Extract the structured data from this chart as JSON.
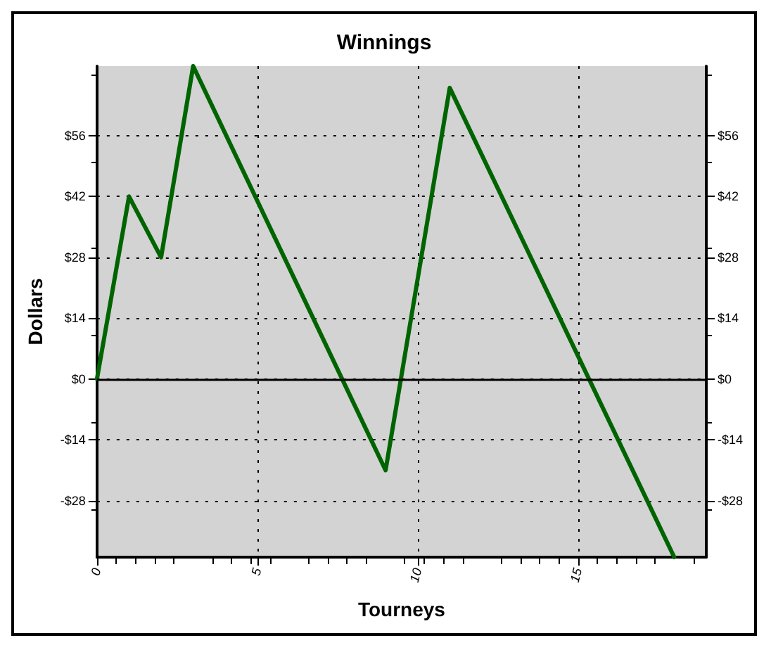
{
  "chart_data": {
    "type": "line",
    "title": "Winnings",
    "xlabel": "Tourneys",
    "ylabel": "Dollars",
    "series": [
      {
        "color": "#006400",
        "x": [
          0,
          1,
          2,
          3,
          9,
          11,
          18
        ],
        "values": [
          0,
          42,
          28,
          72,
          -21,
          67,
          -41
        ]
      }
    ],
    "xlim": [
      0,
      19
    ],
    "xticks": [
      0,
      5,
      10,
      15
    ],
    "ylim": [
      -41,
      72
    ],
    "yticks": [
      {
        "value": -28,
        "label": "-$28"
      },
      {
        "value": -14,
        "label": "-$14"
      },
      {
        "value": 0,
        "label": "$0"
      },
      {
        "value": 14,
        "label": "$14"
      },
      {
        "value": 28,
        "label": "$28"
      },
      {
        "value": 42,
        "label": "$42"
      },
      {
        "value": 56,
        "label": "$56"
      }
    ],
    "y2lim": [
      -41,
      72
    ],
    "y2ticks": [
      {
        "value": -28,
        "label": "-$28"
      },
      {
        "value": -14,
        "label": "-$14"
      },
      {
        "value": 0,
        "label": "$0"
      },
      {
        "value": 14,
        "label": "$14"
      },
      {
        "value": 28,
        "label": "$28"
      },
      {
        "value": 42,
        "label": "$42"
      },
      {
        "value": 56,
        "label": "$56"
      }
    ],
    "ref_lines": [
      {
        "axis": "y",
        "value": 0,
        "color": "#000000"
      }
    ],
    "grid": true,
    "marker": "none",
    "line_style": "solid"
  }
}
